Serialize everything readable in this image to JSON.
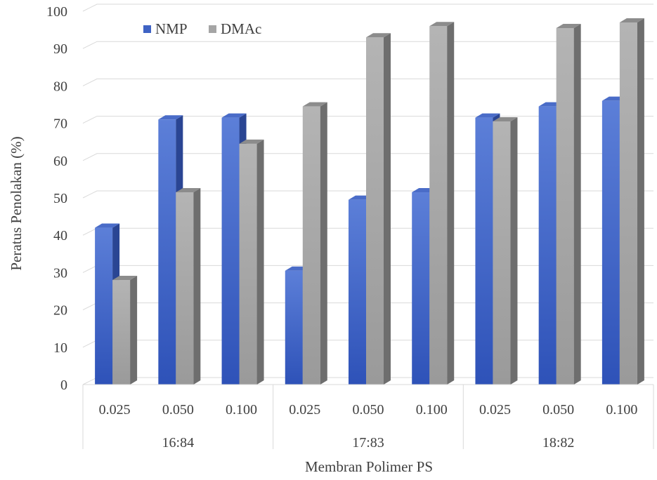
{
  "chart_data": {
    "type": "bar",
    "title": "",
    "xlabel": "Membran Polimer PS",
    "ylabel": "Peratus Penolakan (%)",
    "ylim": [
      0,
      100
    ],
    "yticks": [
      "0",
      "10",
      "20",
      "30",
      "40",
      "50",
      "60",
      "70",
      "80",
      "90",
      "100"
    ],
    "grid": true,
    "legend_position": "top-left",
    "groups": [
      {
        "label": "16:84",
        "categories": [
          "0.025",
          "0.050",
          "0.100"
        ]
      },
      {
        "label": "17:83",
        "categories": [
          "0.025",
          "0.050",
          "0.100"
        ]
      },
      {
        "label": "18:82",
        "categories": [
          "0.025",
          "0.050",
          "0.100"
        ]
      }
    ],
    "series": [
      {
        "name": "NMP",
        "color": "#3f63c4",
        "values": [
          42,
          71,
          71.5,
          30.5,
          49.5,
          51.5,
          71.5,
          74.5,
          76
        ]
      },
      {
        "name": "DMAc",
        "color": "#a5a5a5",
        "values": [
          28,
          51.5,
          64.5,
          74.5,
          93,
          96,
          70.5,
          95.5,
          97
        ]
      }
    ]
  }
}
